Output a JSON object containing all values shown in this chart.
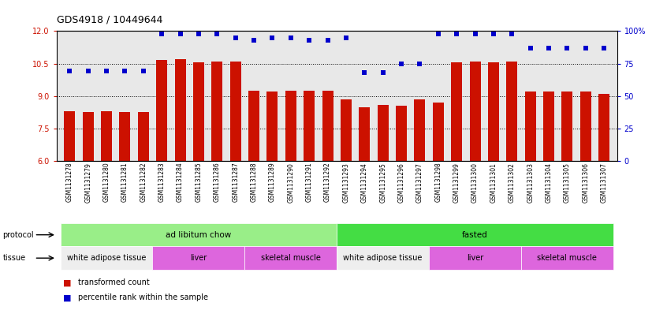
{
  "title": "GDS4918 / 10449644",
  "samples": [
    "GSM1131278",
    "GSM1131279",
    "GSM1131280",
    "GSM1131281",
    "GSM1131282",
    "GSM1131283",
    "GSM1131284",
    "GSM1131285",
    "GSM1131286",
    "GSM1131287",
    "GSM1131288",
    "GSM1131289",
    "GSM1131290",
    "GSM1131291",
    "GSM1131292",
    "GSM1131293",
    "GSM1131294",
    "GSM1131295",
    "GSM1131296",
    "GSM1131297",
    "GSM1131298",
    "GSM1131299",
    "GSM1131300",
    "GSM1131301",
    "GSM1131302",
    "GSM1131303",
    "GSM1131304",
    "GSM1131305",
    "GSM1131306",
    "GSM1131307"
  ],
  "bar_values": [
    8.3,
    8.25,
    8.3,
    8.25,
    8.25,
    10.65,
    10.7,
    10.55,
    10.6,
    10.6,
    9.25,
    9.2,
    9.25,
    9.25,
    9.25,
    8.85,
    8.5,
    8.6,
    8.55,
    8.85,
    8.7,
    10.55,
    10.6,
    10.55,
    10.6,
    9.2,
    9.2,
    9.2,
    9.2,
    9.1
  ],
  "dot_values": [
    69,
    69,
    69,
    69,
    69,
    98,
    98,
    98,
    98,
    95,
    93,
    95,
    95,
    93,
    93,
    95,
    68,
    68,
    75,
    75,
    98,
    98,
    98,
    98,
    98,
    87,
    87,
    87,
    87,
    87
  ],
  "ylim_left": [
    6,
    12
  ],
  "ylim_right": [
    0,
    100
  ],
  "yticks_left": [
    6,
    7.5,
    9,
    10.5,
    12
  ],
  "yticks_right": [
    0,
    25,
    50,
    75,
    100
  ],
  "bar_color": "#cc1100",
  "dot_color": "#0000cc",
  "plot_bg": "#e8e8e8",
  "protocols": [
    {
      "label": "ad libitum chow",
      "start": 0,
      "end": 14,
      "color": "#99ee88"
    },
    {
      "label": "fasted",
      "start": 15,
      "end": 29,
      "color": "#44dd44"
    }
  ],
  "tissues": [
    {
      "label": "white adipose tissue",
      "start": 0,
      "end": 4,
      "color": "#eeeeee"
    },
    {
      "label": "liver",
      "start": 5,
      "end": 9,
      "color": "#dd66dd"
    },
    {
      "label": "skeletal muscle",
      "start": 10,
      "end": 14,
      "color": "#dd66dd"
    },
    {
      "label": "white adipose tissue",
      "start": 15,
      "end": 19,
      "color": "#eeeeee"
    },
    {
      "label": "liver",
      "start": 20,
      "end": 24,
      "color": "#dd66dd"
    },
    {
      "label": "skeletal muscle",
      "start": 25,
      "end": 29,
      "color": "#dd66dd"
    }
  ],
  "legend": [
    {
      "label": "transformed count",
      "color": "#cc1100"
    },
    {
      "label": "percentile rank within the sample",
      "color": "#0000cc"
    }
  ],
  "label_fontsize": 7,
  "tick_fontsize": 5.5,
  "title_fontsize": 9,
  "strip_label_fontsize": 7.5,
  "tissue_label_fontsize": 7
}
